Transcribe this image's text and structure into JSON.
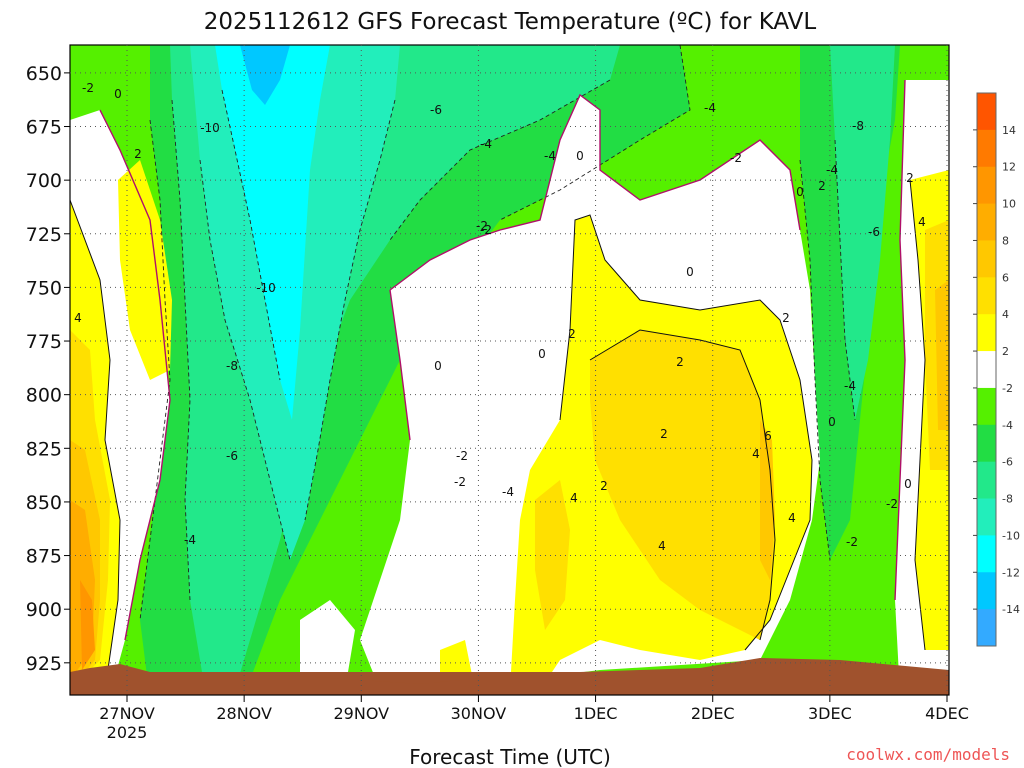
{
  "chart_data": {
    "type": "heatmap",
    "title": "2025112612 GFS Forecast Temperature (ºC) for KAVL",
    "xlabel": "Forecast Time (UTC)",
    "ylabel": "",
    "x_ticks": [
      "27NOV",
      "28NOV",
      "29NOV",
      "30NOV",
      "1DEC",
      "2DEC",
      "3DEC",
      "4DEC"
    ],
    "x_tick_sub": "2025",
    "xlim": [
      "26NOV 12Z",
      "4DEC 00Z"
    ],
    "y_ticks": [
      650,
      675,
      700,
      725,
      750,
      775,
      800,
      825,
      850,
      875,
      900,
      925
    ],
    "ylim": [
      637,
      940
    ],
    "y_reversed": true,
    "grid": true,
    "credit": "coolwx.com/models",
    "colorbar": {
      "placement": "right",
      "labels": [
        "14",
        "12",
        "10",
        "8",
        "6",
        "4",
        "2",
        "-2",
        "-4",
        "-6",
        "-8",
        "-10",
        "-12",
        "-14"
      ],
      "colors": [
        "#ff5500",
        "#ff7a00",
        "#ff9600",
        "#ffad00",
        "#ffc800",
        "#ffe000",
        "#ffff00",
        "#ffffff",
        "#55f000",
        "#22dd44",
        "#22e88a",
        "#22eebb",
        "#00ffff",
        "#00c8ff",
        "#33aaff"
      ]
    },
    "series": [
      {
        "x": [
          "27NOV",
          "28NOV",
          "29NOV",
          "30NOV",
          "1DEC",
          "2DEC",
          "3DEC",
          "4DEC"
        ]
      }
    ],
    "contour_labels": [
      "-2",
      "0",
      "2",
      "-10",
      "-2",
      "4",
      "-10",
      "-8",
      "-6",
      "-4",
      "-6",
      "-4",
      "-2",
      "0",
      "-2",
      "-2",
      "-4",
      "-4",
      "0",
      "2",
      "0",
      "2",
      "4",
      "2",
      "2",
      "4",
      "6",
      "4",
      "2",
      "4",
      "-4",
      "-2",
      "0",
      "-8",
      "-6",
      "-4",
      "0",
      "-4",
      "2",
      "0",
      "2",
      "-2",
      "-2",
      "4",
      "0"
    ]
  }
}
